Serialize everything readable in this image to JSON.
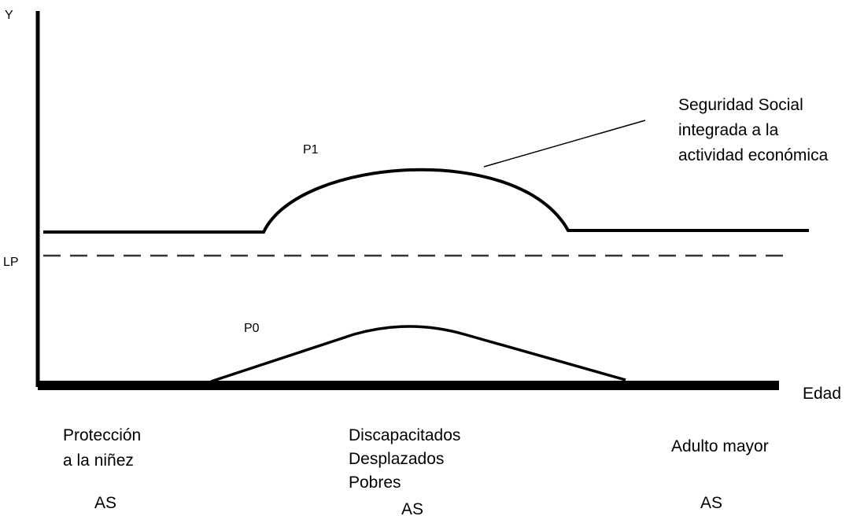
{
  "axes": {
    "y_label": "Y",
    "x_label": "Edad",
    "poverty_line": "LP"
  },
  "curves": {
    "p1": "P1",
    "p0": "P0"
  },
  "annotation": [
    "Seguridad Social",
    "integrada a la",
    "actividad económica"
  ],
  "groups": [
    {
      "lines": [
        "Protección",
        "a la niñez"
      ],
      "program": "AS"
    },
    {
      "lines": [
        "Discapacitados",
        "Desplazados",
        "Pobres"
      ],
      "program": "AS"
    },
    {
      "lines": [
        "Adulto mayor"
      ],
      "program": "AS"
    }
  ]
}
